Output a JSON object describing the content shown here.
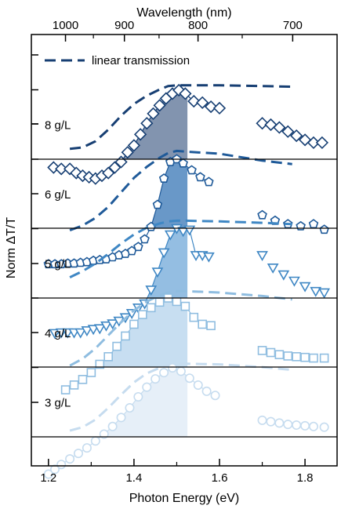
{
  "chart_data": {
    "type": "line",
    "xlabel": "Photon Energy (eV)",
    "ylabel": "Norm ΔT/T",
    "top_axis_label": "Wavelength (nm)",
    "xlim": [
      1.16,
      1.875
    ],
    "x_ticks": [
      1.2,
      1.4,
      1.6,
      1.8
    ],
    "x_tick_labels": [
      "1.2",
      "1.4",
      "1.6",
      "1.8"
    ],
    "top_ticks": [
      1000,
      900,
      800,
      700
    ],
    "top_tick_labels": [
      "1000",
      "900",
      "800",
      "700"
    ],
    "legend": {
      "label": "linear transmission",
      "color": "#173f73",
      "style": "dashed",
      "position": "top-left"
    },
    "shaded_region": [
      1.24,
      1.525
    ],
    "grid": false,
    "panels": [
      {
        "label": "8 g/L",
        "marker": "diamond",
        "color": "#173f73",
        "fill": "#1c3d6e",
        "fill_opacity": 0.55,
        "transient": {
          "x": [
            1.212,
            1.23,
            1.25,
            1.265,
            1.28,
            1.295,
            1.31,
            1.325,
            1.34,
            1.355,
            1.37,
            1.385,
            1.4,
            1.415,
            1.43,
            1.445,
            1.46,
            1.475,
            1.49,
            1.505,
            1.52,
            1.54,
            1.56,
            1.58,
            1.6,
            1.7,
            1.72,
            1.74,
            1.76,
            1.78,
            1.8,
            1.82,
            1.84
          ],
          "y": [
            -0.12,
            -0.14,
            -0.14,
            -0.2,
            -0.24,
            -0.26,
            -0.28,
            -0.24,
            -0.2,
            -0.12,
            -0.04,
            0.1,
            0.2,
            0.36,
            0.52,
            0.66,
            0.78,
            0.88,
            0.95,
            1.0,
            0.95,
            0.84,
            0.82,
            0.76,
            0.74,
            0.52,
            0.5,
            0.46,
            0.4,
            0.34,
            0.28,
            0.24,
            0.24
          ]
        },
        "linear": {
          "x": [
            1.25,
            1.28,
            1.31,
            1.34,
            1.37,
            1.4,
            1.43,
            1.46,
            1.48,
            1.5,
            1.52,
            1.6,
            1.7,
            1.77
          ],
          "y": [
            0.15,
            0.17,
            0.26,
            0.43,
            0.63,
            0.8,
            0.92,
            1.01,
            1.06,
            1.07,
            1.07,
            1.07,
            1.06,
            1.05
          ]
        }
      },
      {
        "label": "6 g/L",
        "marker": "pentagon",
        "color": "#1f5a99",
        "fill": "#2a6cb0",
        "fill_opacity": 0.7,
        "transient": {
          "x": [
            1.2,
            1.215,
            1.23,
            1.245,
            1.26,
            1.275,
            1.29,
            1.305,
            1.32,
            1.335,
            1.35,
            1.365,
            1.38,
            1.395,
            1.41,
            1.425,
            1.44,
            1.455,
            1.47,
            1.485,
            1.5,
            1.515,
            1.535,
            1.555,
            1.575,
            1.7,
            1.73,
            1.76,
            1.79,
            1.82,
            1.845
          ],
          "y": [
            -0.52,
            -0.52,
            -0.52,
            -0.51,
            -0.51,
            -0.5,
            -0.49,
            -0.47,
            -0.46,
            -0.45,
            -0.42,
            -0.39,
            -0.37,
            -0.33,
            -0.27,
            -0.16,
            0.02,
            0.34,
            0.72,
            0.96,
            1.0,
            0.94,
            0.84,
            0.74,
            0.67,
            0.19,
            0.11,
            0.06,
            0.03,
            0.06,
            -0.02
          ]
        },
        "linear": {
          "x": [
            1.25,
            1.28,
            1.31,
            1.34,
            1.37,
            1.4,
            1.43,
            1.46,
            1.48,
            1.5,
            1.52,
            1.6,
            1.7,
            1.77
          ],
          "y": [
            -0.03,
            0.04,
            0.15,
            0.31,
            0.52,
            0.73,
            0.89,
            1.02,
            1.09,
            1.12,
            1.11,
            1.08,
            0.98,
            0.93
          ]
        }
      },
      {
        "label": "5 g/L",
        "marker": "triangle-down",
        "color": "#3f87c4",
        "fill": "#66a3d6",
        "fill_opacity": 0.7,
        "transient": {
          "x": [
            1.215,
            1.23,
            1.245,
            1.26,
            1.275,
            1.29,
            1.305,
            1.32,
            1.335,
            1.35,
            1.365,
            1.38,
            1.395,
            1.41,
            1.425,
            1.44,
            1.455,
            1.47,
            1.485,
            1.5,
            1.515,
            1.53,
            1.545,
            1.56,
            1.575,
            1.7,
            1.725,
            1.75,
            1.775,
            1.8,
            1.825,
            1.845
          ],
          "y": [
            -0.51,
            -0.5,
            -0.5,
            -0.5,
            -0.5,
            -0.47,
            -0.45,
            -0.44,
            -0.4,
            -0.37,
            -0.33,
            -0.28,
            -0.22,
            -0.14,
            -0.08,
            0.12,
            0.38,
            0.66,
            0.92,
            1.01,
            0.97,
            0.99,
            0.62,
            0.62,
            0.6,
            0.62,
            0.44,
            0.34,
            0.25,
            0.17,
            0.1,
            0.08
          ]
        },
        "linear": {
          "x": [
            1.25,
            1.28,
            1.31,
            1.34,
            1.37,
            1.4,
            1.43,
            1.46,
            1.48,
            1.5,
            1.52,
            1.6,
            1.7,
            1.77
          ],
          "y": [
            0.3,
            0.39,
            0.5,
            0.64,
            0.79,
            0.92,
            1.02,
            1.08,
            1.11,
            1.12,
            1.12,
            1.11,
            1.09,
            1.07
          ]
        }
      },
      {
        "label": "4 g/L",
        "marker": "square",
        "color": "#8fbde0",
        "fill": "#a9cde9",
        "fill_opacity": 0.65,
        "transient": {
          "x": [
            1.24,
            1.26,
            1.28,
            1.3,
            1.32,
            1.34,
            1.36,
            1.38,
            1.4,
            1.42,
            1.44,
            1.46,
            1.48,
            1.5,
            1.52,
            1.54,
            1.56,
            1.58,
            1.7,
            1.72,
            1.74,
            1.76,
            1.78,
            1.8,
            1.82,
            1.845
          ],
          "y": [
            -0.33,
            -0.26,
            -0.18,
            -0.08,
            0.04,
            0.15,
            0.3,
            0.45,
            0.62,
            0.76,
            0.86,
            0.94,
            1.0,
            0.95,
            0.88,
            0.72,
            0.62,
            0.6,
            0.24,
            0.21,
            0.18,
            0.16,
            0.15,
            0.14,
            0.13,
            0.13
          ]
        },
        "linear": {
          "x": [
            1.25,
            1.28,
            1.31,
            1.34,
            1.37,
            1.4,
            1.43,
            1.46,
            1.48,
            1.5,
            1.52,
            1.6,
            1.7,
            1.77
          ],
          "y": [
            0.02,
            0.12,
            0.27,
            0.46,
            0.65,
            0.82,
            0.95,
            1.04,
            1.08,
            1.1,
            1.1,
            1.08,
            1.03,
            0.98
          ]
        }
      },
      {
        "label": "3 g/L",
        "marker": "circle",
        "color": "#c6dcef",
        "fill": "#d8e7f5",
        "fill_opacity": 0.65,
        "transient": {
          "x": [
            1.2,
            1.215,
            1.23,
            1.25,
            1.27,
            1.29,
            1.31,
            1.33,
            1.35,
            1.37,
            1.39,
            1.41,
            1.43,
            1.45,
            1.47,
            1.49,
            1.51,
            1.53,
            1.55,
            1.57,
            1.59,
            1.7,
            1.72,
            1.74,
            1.76,
            1.78,
            1.8,
            1.82,
            1.845
          ],
          "y": [
            -0.54,
            -0.47,
            -0.4,
            -0.32,
            -0.24,
            -0.16,
            -0.06,
            0.04,
            0.15,
            0.28,
            0.42,
            0.58,
            0.72,
            0.84,
            0.93,
            1.0,
            0.95,
            0.85,
            0.75,
            0.66,
            0.6,
            0.24,
            0.22,
            0.2,
            0.18,
            0.17,
            0.16,
            0.15,
            0.14
          ]
        },
        "linear": {
          "x": [
            1.25,
            1.28,
            1.31,
            1.34,
            1.37,
            1.4,
            1.43,
            1.46,
            1.48,
            1.5,
            1.52,
            1.6,
            1.7,
            1.77
          ],
          "y": [
            0.09,
            0.14,
            0.25,
            0.42,
            0.61,
            0.79,
            0.92,
            1.0,
            1.04,
            1.06,
            1.06,
            1.05,
            1.01,
            0.97
          ]
        }
      }
    ]
  }
}
